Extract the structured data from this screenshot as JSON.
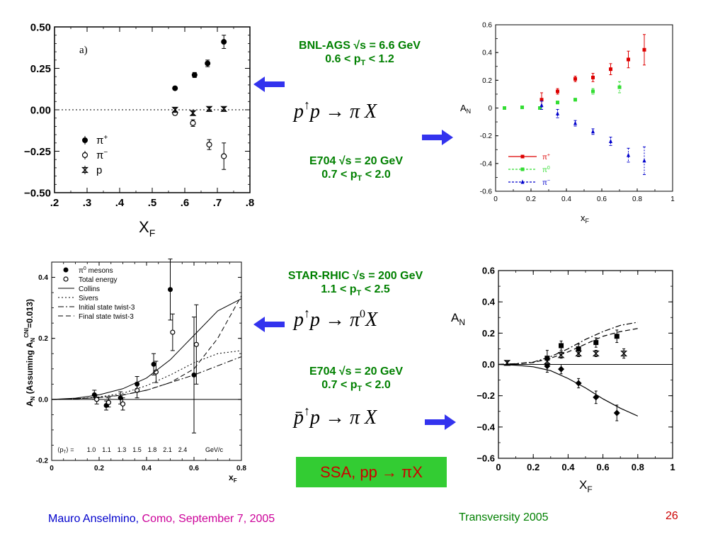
{
  "slide": {
    "footer_author": "Mauro Anselmino,",
    "footer_place_date": "Como, September 7, 2005",
    "footer_conference": "Transversity 2005",
    "footer_page": "26",
    "ssa_box": "SSA, pp → πX",
    "colors": {
      "green": "#008000",
      "blue": "#0000cc",
      "magenta": "#cc0099",
      "red": "#cc0000",
      "ssa_bg": "#33cc33",
      "arrow": "#3333ee"
    },
    "icons": [
      "left-arrow-icon",
      "right-arrow-icon"
    ]
  },
  "blocks": {
    "bnl": {
      "line1": "BNL-AGS  √s = 6.6 GeV",
      "line2_pre": "0.6 < p",
      "line2_sub": "T",
      "line2_post": " < 1.2"
    },
    "e704_a": {
      "line1": "E704  √s = 20 GeV",
      "line2_pre": "0.7 < p",
      "line2_sub": "T",
      "line2_post": " < 2.0"
    },
    "star": {
      "line1": "STAR-RHIC  √s = 200 GeV",
      "line2_pre": "1.1 < p",
      "line2_sub": "T",
      "line2_post": " < 2.5"
    },
    "e704_b": {
      "line1": "E704  √s = 20 GeV",
      "line2_pre": "0.7 < p",
      "line2_sub": "T",
      "line2_post": " < 2.0"
    },
    "reaction1": {
      "p1": "p",
      "up": "↑",
      "p2": "p",
      "arrow": "→",
      "pi": "π",
      "X": "X"
    },
    "reaction2": {
      "p1": "p",
      "up": "↑",
      "p2": "p",
      "arrow": "→",
      "pi": "π",
      "sup": "0",
      "X": "X"
    },
    "reaction3": {
      "p1": "p̄",
      "up": "↑",
      "p2": "p",
      "arrow": "→",
      "pi": "π",
      "X": "X"
    }
  },
  "chart_data": [
    {
      "type": "scatter",
      "panel": "a)",
      "xlabel": "X",
      "xlabel_sub": "F",
      "xlim": [
        0.2,
        0.8
      ],
      "ylim": [
        -0.5,
        0.5
      ],
      "xticks": [
        ".2",
        ".3",
        ".4",
        ".5",
        ".6",
        ".7",
        ".8"
      ],
      "yticks": [
        "0.50",
        "0.25",
        "0.00",
        "−0.25",
        "−0.50"
      ],
      "grid": false,
      "legend": [
        {
          "name": "π",
          "sup": "+"
        },
        {
          "name": "π",
          "sup": "−"
        },
        {
          "name": "p",
          "sup": ""
        }
      ],
      "series": [
        {
          "name": "π+",
          "marker": "filled-circle",
          "x": [
            0.57,
            0.63,
            0.67,
            0.72
          ],
          "y": [
            0.13,
            0.21,
            0.28,
            0.41
          ],
          "err": [
            0.005,
            0.015,
            0.02,
            0.04
          ]
        },
        {
          "name": "π−",
          "marker": "open-circle",
          "x": [
            0.57,
            0.625,
            0.675,
            0.72
          ],
          "y": [
            -0.02,
            -0.08,
            -0.21,
            -0.28
          ],
          "err": [
            0.01,
            0.02,
            0.03,
            0.08
          ]
        },
        {
          "name": "p",
          "marker": "hourglass",
          "x": [
            0.57,
            0.625,
            0.675,
            0.72
          ],
          "y": [
            0.0,
            -0.02,
            0.005,
            0.005
          ],
          "err": [
            0.01,
            0.01,
            0.01,
            0.01
          ]
        }
      ]
    },
    {
      "type": "scatter",
      "ylabel": "A",
      "ylabel_sub": "N",
      "xlabel": "x",
      "xlabel_sub": "F",
      "xlim": [
        0,
        1
      ],
      "ylim": [
        -0.6,
        0.6
      ],
      "xticks": [
        "0",
        "0.2",
        "0.4",
        "0.6",
        "0.8",
        "1"
      ],
      "yticks": [
        "0.6",
        "0.4",
        "0.2",
        "0",
        "-0.2",
        "-0.4",
        "-0.6"
      ],
      "grid": false,
      "legend": [
        {
          "name": "π",
          "sup": "+"
        },
        {
          "name": "π",
          "sup": "0"
        },
        {
          "name": "π",
          "sup": "−"
        }
      ],
      "series": [
        {
          "name": "π+",
          "color": "#dd0000",
          "x": [
            0.26,
            0.35,
            0.45,
            0.55,
            0.65,
            0.75,
            0.84
          ],
          "y": [
            0.06,
            0.12,
            0.21,
            0.22,
            0.28,
            0.35,
            0.42
          ],
          "err": [
            0.05,
            0.02,
            0.02,
            0.03,
            0.04,
            0.06,
            0.11
          ]
        },
        {
          "name": "π0",
          "color": "#33dd33",
          "x": [
            0.05,
            0.15,
            0.25,
            0.35,
            0.45,
            0.55,
            0.7
          ],
          "y": [
            0.0,
            0.005,
            0.0,
            0.04,
            0.06,
            0.12,
            0.15
          ],
          "err": [
            0.005,
            0.005,
            0.01,
            0.01,
            0.01,
            0.02,
            0.04
          ]
        },
        {
          "name": "π−",
          "color": "#0000cc",
          "x": [
            0.26,
            0.35,
            0.45,
            0.55,
            0.65,
            0.75,
            0.84
          ],
          "y": [
            0.02,
            -0.04,
            -0.11,
            -0.17,
            -0.24,
            -0.34,
            -0.38
          ],
          "err": [
            0.03,
            0.03,
            0.02,
            0.02,
            0.03,
            0.05,
            0.1
          ]
        }
      ]
    },
    {
      "type": "scatter",
      "ylabel": "A",
      "ylabel_sub": "N",
      "ylabel_rest": " (Assuming A",
      "ylabel_sub2": "N",
      "ylabel_sup2": "CNI",
      "ylabel_end": "=0.013)",
      "xlabel": "x",
      "xlabel_sub": "F",
      "xlim": [
        0,
        0.8
      ],
      "ylim": [
        -0.2,
        0.45
      ],
      "xticks": [
        "0",
        "0.2",
        "0.4",
        "0.6",
        "0.8"
      ],
      "yticks": [
        "0.4",
        "0.2",
        "0.0",
        "-0.2"
      ],
      "grid": false,
      "legend": [
        {
          "marker": "filled-circle",
          "pre": "π",
          "sup": "0",
          "label": " mesons"
        },
        {
          "marker": "open-circle",
          "pre": "",
          "sup": "",
          "label": "Total energy"
        },
        {
          "marker": "line-solid",
          "label": "Collins"
        },
        {
          "marker": "line-dotted",
          "label": "Sivers"
        },
        {
          "marker": "line-dashdot",
          "label": "Initial state twist-3"
        },
        {
          "marker": "line-dashed",
          "label": "Final state twist-3"
        }
      ],
      "pt_label_pre": "⟨p",
      "pt_label_sub": "T",
      "pt_label_post": "⟩  =",
      "pt_values": [
        "1.0",
        "1.1",
        "1.3",
        "1.5",
        "1.8",
        "2.1",
        "2.4"
      ],
      "pt_unit": "GeV/c",
      "series": [
        {
          "name": "π0 mesons",
          "marker": "filled-circle",
          "x": [
            0.18,
            0.23,
            0.29,
            0.36,
            0.43,
            0.5,
            0.6
          ],
          "y": [
            0.015,
            -0.02,
            0.005,
            0.05,
            0.115,
            0.36,
            0.08
          ],
          "err": [
            0.015,
            0.015,
            0.02,
            0.025,
            0.035,
            0.1,
            0.19
          ]
        },
        {
          "name": "Total energy",
          "marker": "open-circle",
          "x": [
            0.19,
            0.24,
            0.3,
            0.36,
            0.44,
            0.51,
            0.61
          ],
          "y": [
            0.0,
            -0.01,
            -0.015,
            0.03,
            0.09,
            0.22,
            0.18
          ],
          "err": [
            0.015,
            0.015,
            0.02,
            0.025,
            0.035,
            0.06,
            0.13
          ]
        },
        {
          "name": "Collins",
          "style": "solid",
          "x": [
            0,
            0.1,
            0.2,
            0.3,
            0.4,
            0.5,
            0.6,
            0.7,
            0.8
          ],
          "y": [
            0,
            0.004,
            0.015,
            0.035,
            0.07,
            0.13,
            0.21,
            0.29,
            0.33
          ]
        },
        {
          "name": "Sivers",
          "style": "dotted",
          "x": [
            0,
            0.1,
            0.2,
            0.3,
            0.4,
            0.5,
            0.6,
            0.7,
            0.8
          ],
          "y": [
            0,
            0.002,
            0.008,
            0.02,
            0.045,
            0.08,
            0.12,
            0.15,
            0.16
          ]
        },
        {
          "name": "Initial state twist-3",
          "style": "dashdot",
          "x": [
            0,
            0.1,
            0.2,
            0.3,
            0.4,
            0.5,
            0.6,
            0.7,
            0.8
          ],
          "y": [
            0,
            0.002,
            0.006,
            0.015,
            0.03,
            0.055,
            0.08,
            0.11,
            0.14
          ]
        },
        {
          "name": "Final state twist-3",
          "style": "dashed",
          "x": [
            0,
            0.1,
            0.2,
            0.3,
            0.4,
            0.5,
            0.6,
            0.7,
            0.8
          ],
          "y": [
            0,
            0.002,
            0.006,
            0.014,
            0.03,
            0.055,
            0.1,
            0.2,
            0.34
          ]
        }
      ]
    },
    {
      "type": "scatter",
      "ylabel": "A",
      "ylabel_sub": "N",
      "xlabel": "X",
      "xlabel_sub": "F",
      "xlim": [
        0,
        1
      ],
      "ylim": [
        -0.6,
        0.6
      ],
      "xticks": [
        "0",
        "0.2",
        "0.4",
        "0.6",
        "0.8",
        "1"
      ],
      "yticks": [
        "0.6",
        "0.4",
        "0.2",
        "0.0",
        "−0.2",
        "−0.4",
        "−0.6"
      ],
      "grid": false,
      "series": [
        {
          "name": "filled-square",
          "marker": "filled-square",
          "x": [
            0.28,
            0.36,
            0.46,
            0.56,
            0.68
          ],
          "y": [
            0.04,
            0.12,
            0.1,
            0.14,
            0.18
          ],
          "err": [
            0.05,
            0.03,
            0.03,
            0.03,
            0.04
          ]
        },
        {
          "name": "hourglass",
          "marker": "hourglass",
          "x": [
            0.05,
            0.28,
            0.36,
            0.46,
            0.56,
            0.72
          ],
          "y": [
            0.01,
            0.02,
            0.06,
            0.07,
            0.07,
            0.07
          ],
          "err": [
            0.01,
            0.02,
            0.02,
            0.02,
            0.02,
            0.03
          ]
        },
        {
          "name": "filled-diamond",
          "marker": "filled-diamond",
          "x": [
            0.28,
            0.36,
            0.46,
            0.56,
            0.68
          ],
          "y": [
            -0.01,
            -0.03,
            -0.12,
            -0.21,
            -0.31
          ],
          "err": [
            0.04,
            0.03,
            0.03,
            0.04,
            0.05
          ]
        },
        {
          "name": "curve-dashdot",
          "style": "dashdot",
          "x": [
            0,
            0.1,
            0.2,
            0.3,
            0.4,
            0.5,
            0.6,
            0.7,
            0.8
          ],
          "y": [
            0,
            0.005,
            0.015,
            0.05,
            0.1,
            0.16,
            0.21,
            0.25,
            0.27
          ]
        },
        {
          "name": "curve-dashed",
          "style": "dashed",
          "x": [
            0,
            0.1,
            0.2,
            0.3,
            0.4,
            0.5,
            0.6,
            0.7,
            0.8
          ],
          "y": [
            0,
            0.004,
            0.012,
            0.04,
            0.08,
            0.13,
            0.18,
            0.21,
            0.23
          ]
        },
        {
          "name": "curve-solid",
          "style": "solid",
          "x": [
            0,
            0.1,
            0.2,
            0.3,
            0.4,
            0.5,
            0.6,
            0.7,
            0.8
          ],
          "y": [
            0,
            -0.005,
            -0.015,
            -0.04,
            -0.09,
            -0.15,
            -0.22,
            -0.28,
            -0.33
          ]
        }
      ]
    }
  ]
}
